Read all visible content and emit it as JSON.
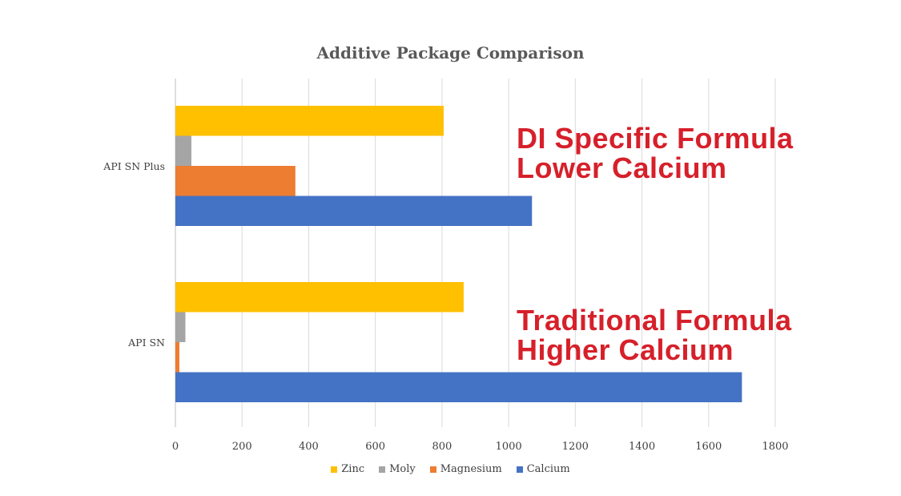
{
  "chart_data": {
    "type": "bar",
    "orientation": "horizontal",
    "title": "Additive Package Comparison",
    "categories": [
      "API SN Plus",
      "API SN"
    ],
    "series": [
      {
        "name": "Zinc",
        "color": "#ffc000",
        "values": [
          805,
          865
        ]
      },
      {
        "name": "Moly",
        "color": "#a5a5a5",
        "values": [
          48,
          30
        ]
      },
      {
        "name": "Magnesium",
        "color": "#ed7d31",
        "values": [
          360,
          12
        ]
      },
      {
        "name": "Calcium",
        "color": "#4472c4",
        "values": [
          1070,
          1700
        ]
      }
    ],
    "xlim": [
      0,
      1800
    ],
    "xticks": [
      "0",
      "200",
      "400",
      "600",
      "800",
      "1000",
      "1200",
      "1400",
      "1600",
      "1800"
    ],
    "gridlines": true,
    "legend_position": "bottom",
    "annotations": [
      {
        "line1": "DI Specific Formula",
        "line2": "Lower Calcium",
        "color": "#d6202a"
      },
      {
        "line1": "Traditional Formula",
        "line2": "Higher Calcium",
        "color": "#d6202a"
      }
    ]
  }
}
